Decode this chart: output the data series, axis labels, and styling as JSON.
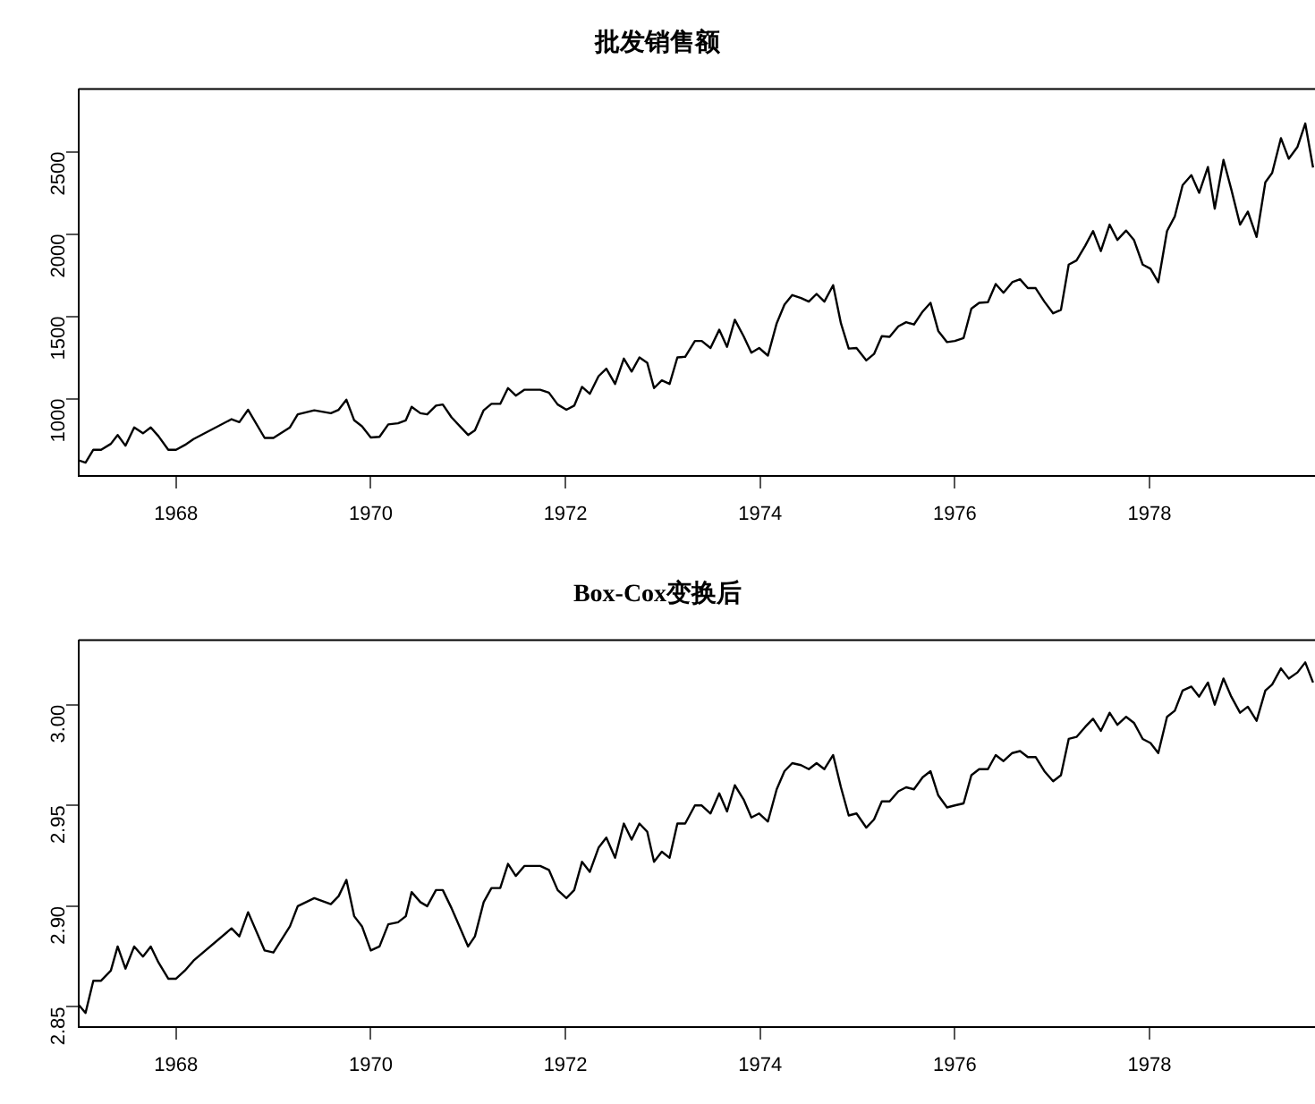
{
  "chart_data": [
    {
      "type": "line",
      "title": "批发销售额",
      "color": "#000000",
      "x": [
        1967.0,
        1967.07,
        1967.15,
        1967.23,
        1967.33,
        1967.4,
        1967.48,
        1967.57,
        1967.66,
        1967.74,
        1967.82,
        1967.92,
        1968.0,
        1968.09,
        1968.18,
        1968.57,
        1968.65,
        1968.74,
        1968.91,
        1969.0,
        1969.17,
        1969.25,
        1969.42,
        1969.59,
        1969.67,
        1969.75,
        1969.83,
        1969.91,
        1970.0,
        1970.09,
        1970.18,
        1970.28,
        1970.36,
        1970.42,
        1970.51,
        1970.58,
        1970.67,
        1970.74,
        1970.83,
        1971.0,
        1971.07,
        1971.16,
        1971.24,
        1971.33,
        1971.41,
        1971.49,
        1971.58,
        1971.74,
        1971.83,
        1971.92,
        1972.01,
        1972.09,
        1972.17,
        1972.25,
        1972.34,
        1972.42,
        1972.51,
        1972.6,
        1972.68,
        1972.76,
        1972.84,
        1972.91,
        1972.99,
        1973.07,
        1973.15,
        1973.23,
        1973.33,
        1973.4,
        1973.49,
        1973.58,
        1973.66,
        1973.74,
        1973.83,
        1973.91,
        1973.99,
        1974.08,
        1974.17,
        1974.25,
        1974.33,
        1974.42,
        1974.5,
        1974.58,
        1974.66,
        1974.75,
        1974.83,
        1974.91,
        1974.99,
        1975.09,
        1975.17,
        1975.25,
        1975.33,
        1975.42,
        1975.5,
        1975.58,
        1975.67,
        1975.75,
        1975.83,
        1975.92,
        1976.0,
        1976.09,
        1976.17,
        1976.25,
        1976.34,
        1976.42,
        1976.5,
        1976.59,
        1976.67,
        1976.75,
        1976.83,
        1976.92,
        1977.01,
        1977.09,
        1977.17,
        1977.25,
        1977.34,
        1977.42,
        1977.5,
        1977.59,
        1977.67,
        1977.76,
        1977.84,
        1977.93,
        1978.01,
        1978.09,
        1978.18,
        1978.26,
        1978.34,
        1978.43,
        1978.51,
        1978.6,
        1978.67,
        1978.76,
        1978.84,
        1978.93,
        1979.01,
        1979.1,
        1979.19,
        1979.26,
        1979.35,
        1979.43,
        1979.52,
        1979.6,
        1979.68
      ],
      "values": [
        625,
        611,
        689,
        689,
        725,
        779,
        714,
        825,
        789,
        825,
        771,
        689,
        689,
        718,
        754,
        875,
        857,
        932,
        761,
        761,
        825,
        904,
        929,
        911,
        932,
        993,
        868,
        832,
        764,
        768,
        843,
        850,
        868,
        950,
        911,
        904,
        957,
        964,
        886,
        779,
        807,
        929,
        968,
        968,
        1064,
        1018,
        1054,
        1054,
        1036,
        964,
        932,
        957,
        1071,
        1029,
        1136,
        1182,
        1089,
        1243,
        1164,
        1250,
        1218,
        1064,
        1111,
        1089,
        1250,
        1254,
        1350,
        1350,
        1307,
        1418,
        1314,
        1479,
        1379,
        1279,
        1307,
        1261,
        1457,
        1571,
        1629,
        1611,
        1589,
        1636,
        1589,
        1689,
        1457,
        1304,
        1307,
        1232,
        1271,
        1379,
        1375,
        1439,
        1464,
        1450,
        1529,
        1582,
        1411,
        1343,
        1350,
        1368,
        1546,
        1582,
        1586,
        1696,
        1643,
        1707,
        1725,
        1671,
        1671,
        1589,
        1518,
        1539,
        1814,
        1839,
        1929,
        2018,
        1896,
        2057,
        1964,
        2021,
        1964,
        1814,
        1789,
        1707,
        2018,
        2107,
        2296,
        2357,
        2250,
        2407,
        2154,
        2450,
        2271,
        2057,
        2136,
        1982,
        2314,
        2371,
        2582,
        2457,
        2529,
        2671,
        2404
      ],
      "xlim": [
        1967,
        1979.7
      ],
      "xticks": [
        1968,
        1970,
        1972,
        1974,
        1976,
        1978
      ],
      "ylim": [
        530,
        2880
      ],
      "yticks": [
        1000,
        1500,
        2000,
        2500
      ]
    },
    {
      "type": "line",
      "title": "Box-Cox变换后",
      "color": "#000000",
      "x": [
        1967.0,
        1967.07,
        1967.15,
        1967.23,
        1967.33,
        1967.4,
        1967.48,
        1967.57,
        1967.66,
        1967.74,
        1967.82,
        1967.92,
        1968.0,
        1968.09,
        1968.18,
        1968.57,
        1968.65,
        1968.74,
        1968.91,
        1969.0,
        1969.17,
        1969.25,
        1969.42,
        1969.59,
        1969.67,
        1969.75,
        1969.83,
        1969.91,
        1970.0,
        1970.09,
        1970.18,
        1970.28,
        1970.36,
        1970.42,
        1970.51,
        1970.58,
        1970.67,
        1970.74,
        1970.83,
        1971.0,
        1971.07,
        1971.16,
        1971.24,
        1971.33,
        1971.41,
        1971.49,
        1971.58,
        1971.74,
        1971.83,
        1971.92,
        1972.01,
        1972.09,
        1972.17,
        1972.25,
        1972.34,
        1972.42,
        1972.51,
        1972.6,
        1972.68,
        1972.76,
        1972.84,
        1972.91,
        1972.99,
        1973.07,
        1973.15,
        1973.23,
        1973.33,
        1973.4,
        1973.49,
        1973.58,
        1973.66,
        1973.74,
        1973.83,
        1973.91,
        1973.99,
        1974.08,
        1974.17,
        1974.25,
        1974.33,
        1974.42,
        1974.5,
        1974.58,
        1974.66,
        1974.75,
        1974.83,
        1974.91,
        1974.99,
        1975.09,
        1975.17,
        1975.25,
        1975.33,
        1975.42,
        1975.5,
        1975.58,
        1975.67,
        1975.75,
        1975.83,
        1975.92,
        1976.0,
        1976.09,
        1976.17,
        1976.25,
        1976.34,
        1976.42,
        1976.5,
        1976.59,
        1976.67,
        1976.75,
        1976.83,
        1976.92,
        1977.01,
        1977.09,
        1977.17,
        1977.25,
        1977.34,
        1977.42,
        1977.5,
        1977.59,
        1977.67,
        1977.76,
        1977.84,
        1977.93,
        1978.01,
        1978.09,
        1978.18,
        1978.26,
        1978.34,
        1978.43,
        1978.51,
        1978.6,
        1978.67,
        1978.76,
        1978.84,
        1978.93,
        1979.01,
        1979.1,
        1979.19,
        1979.26,
        1979.35,
        1979.43,
        1979.52,
        1979.6,
        1979.68
      ],
      "values": [
        2.851,
        2.847,
        2.863,
        2.863,
        2.868,
        2.88,
        2.869,
        2.88,
        2.875,
        2.88,
        2.872,
        2.864,
        2.864,
        2.868,
        2.873,
        2.889,
        2.885,
        2.897,
        2.878,
        2.877,
        2.89,
        2.9,
        2.904,
        2.901,
        2.905,
        2.913,
        2.895,
        2.89,
        2.878,
        2.88,
        2.891,
        2.892,
        2.895,
        2.907,
        2.902,
        2.9,
        2.908,
        2.908,
        2.899,
        2.88,
        2.885,
        2.902,
        2.909,
        2.909,
        2.921,
        2.915,
        2.92,
        2.92,
        2.918,
        2.908,
        2.904,
        2.908,
        2.922,
        2.917,
        2.929,
        2.934,
        2.924,
        2.941,
        2.933,
        2.941,
        2.937,
        2.922,
        2.927,
        2.924,
        2.941,
        2.941,
        2.95,
        2.95,
        2.946,
        2.956,
        2.947,
        2.96,
        2.953,
        2.944,
        2.946,
        2.942,
        2.958,
        2.967,
        2.971,
        2.97,
        2.968,
        2.971,
        2.968,
        2.975,
        2.959,
        2.945,
        2.946,
        2.939,
        2.943,
        2.952,
        2.952,
        2.957,
        2.959,
        2.958,
        2.964,
        2.967,
        2.955,
        2.949,
        2.95,
        2.951,
        2.965,
        2.968,
        2.968,
        2.975,
        2.972,
        2.976,
        2.977,
        2.974,
        2.974,
        2.967,
        2.962,
        2.965,
        2.983,
        2.984,
        2.989,
        2.993,
        2.987,
        2.996,
        2.99,
        2.994,
        2.991,
        2.983,
        2.981,
        2.976,
        2.994,
        2.997,
        3.007,
        3.009,
        3.004,
        3.011,
        3.0,
        3.013,
        3.004,
        2.996,
        2.999,
        2.992,
        3.007,
        3.01,
        3.018,
        3.013,
        3.016,
        3.021,
        3.011
      ],
      "xlim": [
        1967,
        1979.7
      ],
      "xticks": [
        1968,
        1970,
        1972,
        1974,
        1976,
        1978
      ],
      "ylim": [
        2.84,
        3.032
      ],
      "yticks": [
        {
          "value": 2.85,
          "label": "2.85"
        },
        {
          "value": 2.9,
          "label": "2.90"
        },
        {
          "value": 2.95,
          "label": "2.95"
        },
        {
          "value": 3.0,
          "label": "3.00"
        }
      ]
    }
  ]
}
